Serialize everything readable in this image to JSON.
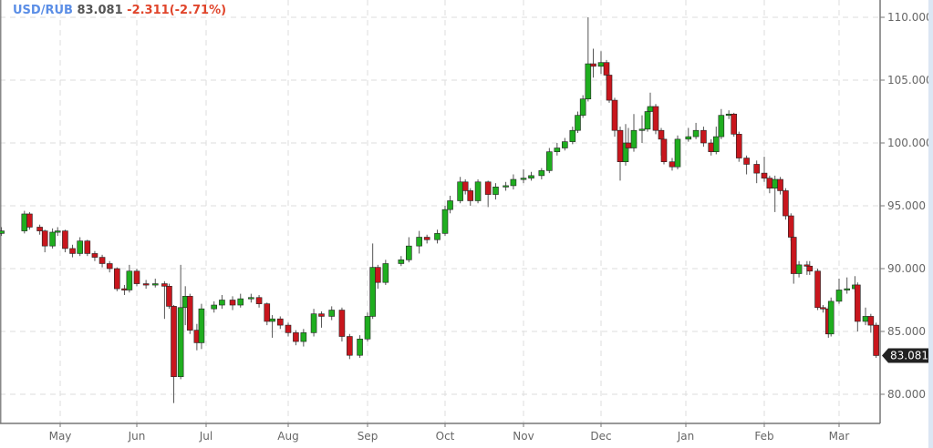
{
  "header": {
    "symbol": "USD/RUB",
    "last": "83.081",
    "change": "-2.311(-2.71%)"
  },
  "colors": {
    "up": "#1fae1f",
    "down": "#c8161d",
    "wick": "#555555",
    "grid": "#dddddd",
    "axis": "#777777",
    "price_tag_bg": "#222222",
    "symbol": "#5b8ee6",
    "change": "#e0452b"
  },
  "chart_data": {
    "type": "candlestick",
    "title": "",
    "ylim": [
      77.5,
      111.5
    ],
    "grid": true,
    "y_ticks": [
      "110.000",
      "105.000",
      "100.000",
      "95.000",
      "90.000",
      "85.000",
      "80.000"
    ],
    "x_ticks": [
      "May",
      "Jun",
      "Jul",
      "Aug",
      "Sep",
      "Oct",
      "Nov",
      "Dec",
      "Jan",
      "Feb",
      "Mar"
    ],
    "last_price_label": "83.081",
    "candles_fields": [
      "date",
      "open",
      "high",
      "low",
      "close"
    ],
    "candles": [
      [
        "Apr 8",
        92.8,
        93.3,
        92.6,
        93.0
      ],
      [
        "Apr 17",
        93.0,
        94.6,
        92.8,
        94.35
      ],
      [
        "Apr 19",
        94.35,
        94.5,
        93.1,
        93.3
      ],
      [
        "Apr 23",
        93.3,
        93.5,
        92.7,
        93.0
      ],
      [
        "Apr 25",
        93.0,
        93.1,
        91.3,
        91.8
      ],
      [
        "Apr 28",
        91.8,
        93.2,
        91.6,
        92.9
      ],
      [
        "Apr 30",
        92.9,
        93.3,
        92.6,
        93.0
      ],
      [
        "May 3",
        93.0,
        93.1,
        91.3,
        91.6
      ],
      [
        "May 6",
        91.6,
        91.9,
        90.9,
        91.2
      ],
      [
        "May 9",
        91.2,
        92.5,
        91.0,
        92.2
      ],
      [
        "May 12",
        92.2,
        92.3,
        91.0,
        91.2
      ],
      [
        "May 15",
        91.2,
        91.4,
        90.6,
        90.9
      ],
      [
        "May 18",
        90.9,
        91.1,
        90.1,
        90.4
      ],
      [
        "May 21",
        90.4,
        90.6,
        89.7,
        90.0
      ],
      [
        "May 24",
        90.0,
        90.1,
        88.2,
        88.4
      ],
      [
        "May 27",
        88.4,
        88.7,
        87.9,
        88.3
      ],
      [
        "May 29",
        88.3,
        90.3,
        88.1,
        89.8
      ],
      [
        "Jun 1",
        89.8,
        90.0,
        88.6,
        88.8
      ],
      [
        "Jun 5",
        88.8,
        89.1,
        88.4,
        88.7
      ],
      [
        "Jun 9",
        88.7,
        89.2,
        88.5,
        88.8
      ],
      [
        "Jun 13",
        88.8,
        89.0,
        86.0,
        88.6
      ],
      [
        "Jun 15",
        88.6,
        88.8,
        86.8,
        87.0
      ],
      [
        "Jun 17",
        87.0,
        87.1,
        79.3,
        81.4
      ],
      [
        "Jun 20",
        81.4,
        90.3,
        81.2,
        86.9
      ],
      [
        "Jun 22",
        86.9,
        88.6,
        85.5,
        87.8
      ],
      [
        "Jun 24",
        87.8,
        88.0,
        84.8,
        85.1
      ],
      [
        "Jun 27",
        85.1,
        85.6,
        83.5,
        84.1
      ],
      [
        "Jun 29",
        84.1,
        87.2,
        83.6,
        86.8
      ],
      [
        "Jul 4",
        86.8,
        87.4,
        86.5,
        87.1
      ],
      [
        "Jul 7",
        87.1,
        87.9,
        86.8,
        87.5
      ],
      [
        "Jul 11",
        87.5,
        87.8,
        86.7,
        87.1
      ],
      [
        "Jul 14",
        87.1,
        88.0,
        86.9,
        87.6
      ],
      [
        "Jul 18",
        87.6,
        88.0,
        87.3,
        87.7
      ],
      [
        "Jul 21",
        87.7,
        87.9,
        86.9,
        87.2
      ],
      [
        "Jul 24",
        87.2,
        87.3,
        85.5,
        85.8
      ],
      [
        "Jul 26",
        85.8,
        86.3,
        84.5,
        86.0
      ],
      [
        "Jul 29",
        86.0,
        86.2,
        85.2,
        85.5
      ],
      [
        "Aug 1",
        85.5,
        85.7,
        84.6,
        84.9
      ],
      [
        "Aug 4",
        84.9,
        85.1,
        83.9,
        84.2
      ],
      [
        "Aug 7",
        84.2,
        85.2,
        83.8,
        84.9
      ],
      [
        "Aug 11",
        84.9,
        86.8,
        84.6,
        86.4
      ],
      [
        "Aug 14",
        86.4,
        86.6,
        85.3,
        86.2
      ],
      [
        "Aug 18",
        86.2,
        87.0,
        85.9,
        86.7
      ],
      [
        "Aug 22",
        86.7,
        86.9,
        84.2,
        84.6
      ],
      [
        "Aug 25",
        84.6,
        84.8,
        82.8,
        83.1
      ],
      [
        "Aug 29",
        83.1,
        84.7,
        82.9,
        84.4
      ],
      [
        "Sep 1",
        84.4,
        86.5,
        84.2,
        86.2
      ],
      [
        "Sep 3",
        86.2,
        92.0,
        86.0,
        90.1
      ],
      [
        "Sep 5",
        90.1,
        90.3,
        88.4,
        88.9
      ],
      [
        "Sep 8",
        88.9,
        90.7,
        88.7,
        90.4
      ],
      [
        "Sep 14",
        90.4,
        91.0,
        90.2,
        90.7
      ],
      [
        "Sep 17",
        90.7,
        92.5,
        90.5,
        91.8
      ],
      [
        "Sep 21",
        91.8,
        93.0,
        91.2,
        92.5
      ],
      [
        "Sep 24",
        92.5,
        92.7,
        92.0,
        92.3
      ],
      [
        "Sep 28",
        92.3,
        93.1,
        92.0,
        92.8
      ],
      [
        "Oct 1",
        92.8,
        95.0,
        92.6,
        94.7
      ],
      [
        "Oct 3",
        94.7,
        95.8,
        94.4,
        95.4
      ],
      [
        "Oct 7",
        95.4,
        97.3,
        95.2,
        96.9
      ],
      [
        "Oct 9",
        96.9,
        97.1,
        95.9,
        96.2
      ],
      [
        "Oct 11",
        96.2,
        96.4,
        95.0,
        95.4
      ],
      [
        "Oct 14",
        95.4,
        97.1,
        95.2,
        96.9
      ],
      [
        "Oct 18",
        96.9,
        97.0,
        94.9,
        95.9
      ],
      [
        "Oct 21",
        95.9,
        96.8,
        95.5,
        96.5
      ],
      [
        "Oct 25",
        96.5,
        96.9,
        96.2,
        96.6
      ],
      [
        "Oct 28",
        96.6,
        97.5,
        96.3,
        97.1
      ],
      [
        "Nov 1",
        97.1,
        97.9,
        96.8,
        97.2
      ],
      [
        "Nov 4",
        97.2,
        97.7,
        97.0,
        97.4
      ],
      [
        "Nov 8",
        97.4,
        98.0,
        97.1,
        97.8
      ],
      [
        "Nov 11",
        97.8,
        99.6,
        97.6,
        99.3
      ],
      [
        "Nov 14",
        99.3,
        100.0,
        99.0,
        99.6
      ],
      [
        "Nov 17",
        99.6,
        100.4,
        99.4,
        100.1
      ],
      [
        "Nov 20",
        100.1,
        101.3,
        99.9,
        101.0
      ],
      [
        "Nov 22",
        101.0,
        102.5,
        100.8,
        102.2
      ],
      [
        "Nov 24",
        102.2,
        103.8,
        102.0,
        103.5
      ],
      [
        "Nov 26",
        103.5,
        110.0,
        103.3,
        106.3
      ],
      [
        "Nov 28",
        106.3,
        107.5,
        105.2,
        106.1
      ],
      [
        "Dec 1",
        106.1,
        107.3,
        105.5,
        106.4
      ],
      [
        "Dec 3",
        106.4,
        106.6,
        105.0,
        105.4
      ],
      [
        "Dec 4",
        105.4,
        105.6,
        103.2,
        103.4
      ],
      [
        "Dec 6",
        103.4,
        103.6,
        100.5,
        101.0
      ],
      [
        "Dec 8",
        101.0,
        101.3,
        97.0,
        98.5
      ],
      [
        "Dec 10",
        98.5,
        101.5,
        98.2,
        100.0
      ],
      [
        "Dec 11",
        100.0,
        101.2,
        99.3,
        99.6
      ],
      [
        "Dec 13",
        99.6,
        102.3,
        99.3,
        101.0
      ],
      [
        "Dec 16",
        101.0,
        102.2,
        100.0,
        101.1
      ],
      [
        "Dec 18",
        101.1,
        102.8,
        100.9,
        102.5
      ],
      [
        "Dec 19",
        102.5,
        104.0,
        102.3,
        102.9
      ],
      [
        "Dec 21",
        102.9,
        103.1,
        100.7,
        101.0
      ],
      [
        "Dec 23",
        101.0,
        101.2,
        99.0,
        100.3
      ],
      [
        "Dec 24",
        100.3,
        100.5,
        98.3,
        98.5
      ],
      [
        "Dec 27",
        98.5,
        98.8,
        97.8,
        98.1
      ],
      [
        "Dec 29",
        98.1,
        100.6,
        97.9,
        100.3
      ],
      [
        "Jan 2",
        100.3,
        101.2,
        100.1,
        100.5
      ],
      [
        "Jan 5",
        100.5,
        101.6,
        100.3,
        101.0
      ],
      [
        "Jan 8",
        101.0,
        101.3,
        99.7,
        100.0
      ],
      [
        "Jan 11",
        100.0,
        100.3,
        99.0,
        99.3
      ],
      [
        "Jan 13",
        99.3,
        101.3,
        99.1,
        100.5
      ],
      [
        "Jan 15",
        100.5,
        102.7,
        100.3,
        102.2
      ],
      [
        "Jan 18",
        102.2,
        102.6,
        101.9,
        102.3
      ],
      [
        "Jan 20",
        102.3,
        102.4,
        100.5,
        100.7
      ],
      [
        "Jan 22",
        100.7,
        100.9,
        98.5,
        98.8
      ],
      [
        "Jan 25",
        98.8,
        99.0,
        97.5,
        98.3
      ],
      [
        "Jan 29",
        98.3,
        98.6,
        96.8,
        97.6
      ],
      [
        "Feb 1",
        97.6,
        98.9,
        96.9,
        97.2
      ],
      [
        "Feb 3",
        97.2,
        97.4,
        96.0,
        96.4
      ],
      [
        "Feb 5",
        96.4,
        97.4,
        94.5,
        97.1
      ],
      [
        "Feb 7",
        97.1,
        97.3,
        95.9,
        96.2
      ],
      [
        "Feb 9",
        96.2,
        96.4,
        93.9,
        94.2
      ],
      [
        "Feb 11",
        94.2,
        94.4,
        92.2,
        92.5
      ],
      [
        "Feb 12",
        92.5,
        92.6,
        88.8,
        89.6
      ],
      [
        "Feb 14",
        89.6,
        90.6,
        89.3,
        90.3
      ],
      [
        "Feb 17",
        90.3,
        90.6,
        89.5,
        90.2
      ],
      [
        "Feb 18",
        90.2,
        90.6,
        89.5,
        89.8
      ],
      [
        "Feb 21",
        89.8,
        90.0,
        86.7,
        86.9
      ],
      [
        "Feb 23",
        86.9,
        87.1,
        86.5,
        86.8
      ],
      [
        "Feb 25",
        86.8,
        87.0,
        84.5,
        84.8
      ],
      [
        "Feb 26",
        84.8,
        87.7,
        84.6,
        87.4
      ],
      [
        "Mar 1",
        87.4,
        89.2,
        87.2,
        88.3
      ],
      [
        "Mar 4",
        88.3,
        89.3,
        88.0,
        88.4
      ],
      [
        "Mar 7",
        88.4,
        89.4,
        88.1,
        88.7
      ],
      [
        "Mar 8",
        88.7,
        88.9,
        85.0,
        85.8
      ],
      [
        "Mar 11",
        85.8,
        86.9,
        85.5,
        86.2
      ],
      [
        "Mar 13",
        86.2,
        86.4,
        84.9,
        85.5
      ],
      [
        "Mar 15",
        85.5,
        85.7,
        82.9,
        83.081
      ]
    ]
  }
}
